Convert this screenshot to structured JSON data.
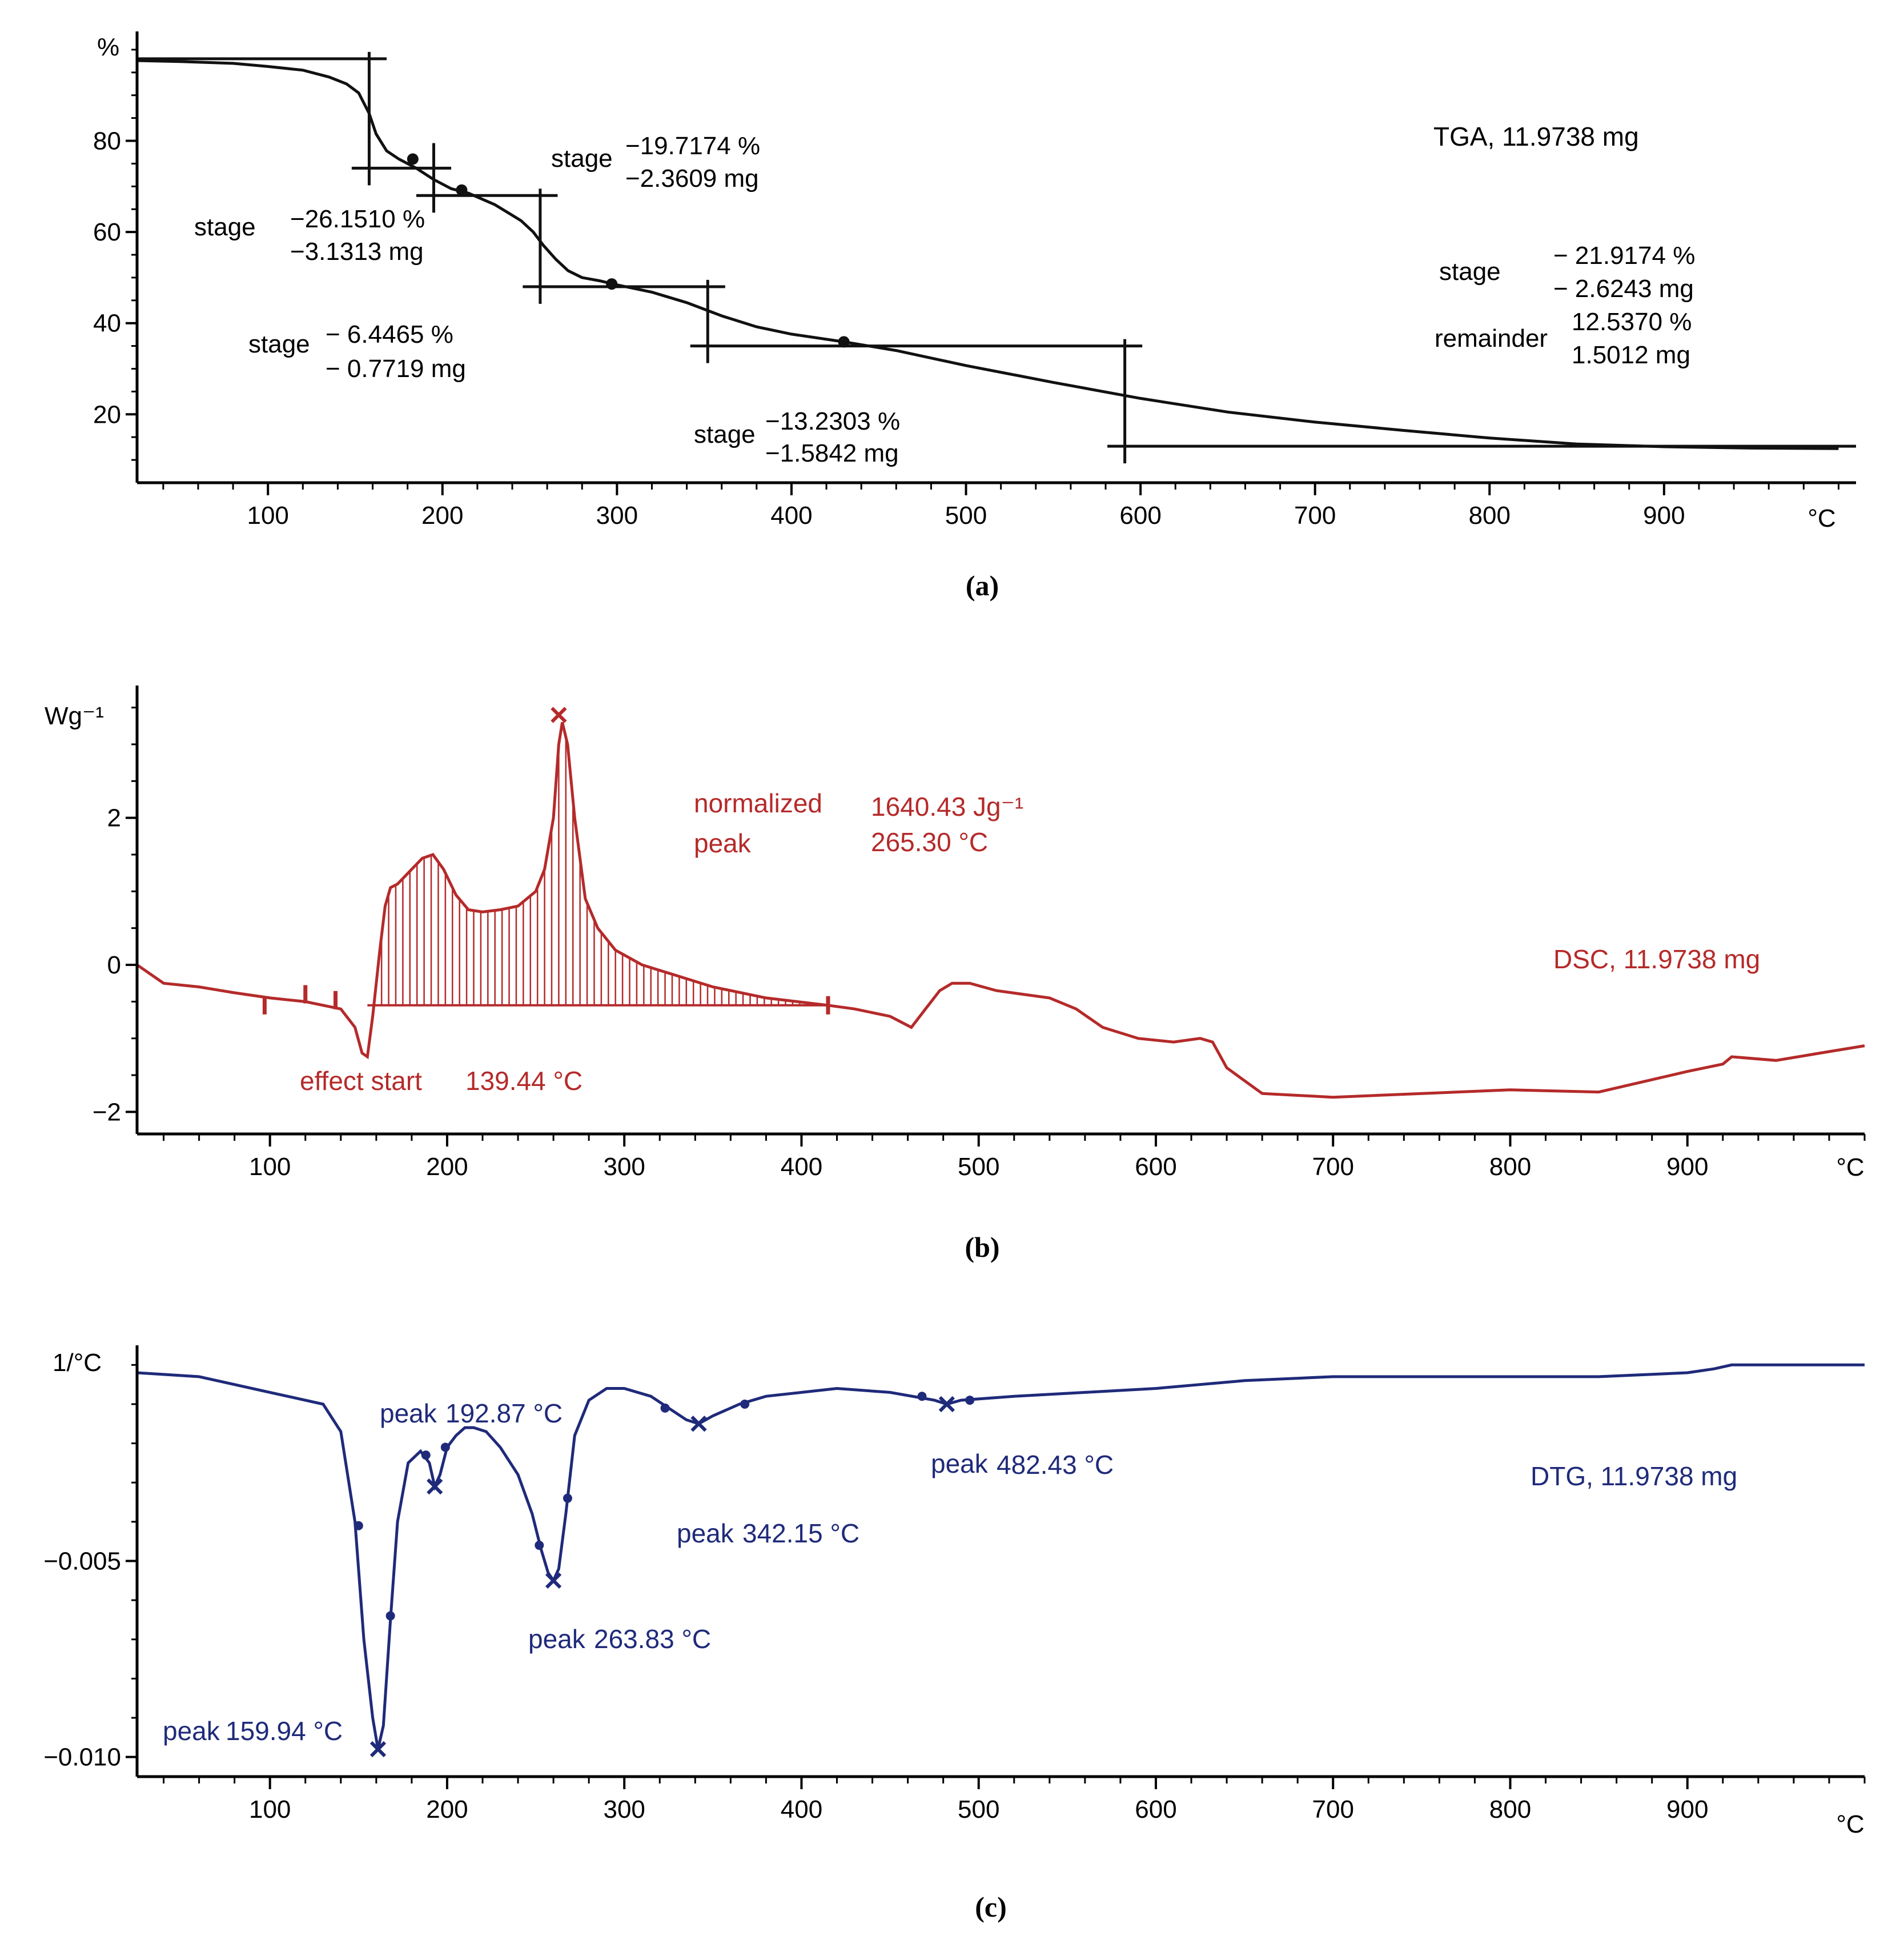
{
  "colors": {
    "tga": "#111111",
    "dsc": "#b52a2a",
    "dtg": "#1f2a7a",
    "axis": "#000000"
  },
  "captions": [
    "(a)",
    "(b)",
    "(c)"
  ],
  "chart_data": [
    {
      "id": "tga",
      "type": "line",
      "title": "TGA, 11.9738 mg",
      "series_name": "TGA, 11.9738 mg",
      "ylabel": "%",
      "xunit": "°C",
      "xlim": [
        25,
        1010
      ],
      "ylim": [
        5,
        104
      ],
      "xticks": [
        100,
        200,
        300,
        400,
        500,
        600,
        700,
        800,
        900
      ],
      "yticks": [
        20,
        40,
        60,
        80
      ],
      "x": [
        25,
        50,
        80,
        100,
        120,
        135,
        145,
        152,
        158,
        162,
        168,
        175,
        185,
        195,
        205,
        215,
        230,
        245,
        252,
        258,
        265,
        272,
        280,
        290,
        300,
        320,
        340,
        360,
        380,
        400,
        430,
        460,
        500,
        550,
        600,
        650,
        700,
        750,
        800,
        850,
        900,
        950,
        1000
      ],
      "y": [
        97.6,
        97.4,
        97.0,
        96.3,
        95.5,
        94.0,
        92.5,
        90.5,
        86.0,
        81.5,
        77.8,
        76.0,
        74.0,
        71.5,
        69.5,
        68.5,
        66.0,
        62.5,
        60.0,
        57.0,
        54.0,
        51.5,
        50.0,
        49.3,
        48.4,
        46.8,
        44.5,
        41.6,
        39.2,
        37.6,
        35.9,
        34.0,
        30.7,
        27.0,
        23.5,
        20.5,
        18.3,
        16.5,
        14.8,
        13.5,
        12.9,
        12.6,
        12.5
      ],
      "markers": [
        {
          "x": 183,
          "y": 76.0
        },
        {
          "x": 211,
          "y": 69.2
        },
        {
          "x": 297,
          "y": 48.6
        },
        {
          "x": 430,
          "y": 35.9
        }
      ],
      "stage_steps": [
        {
          "x": 158,
          "y_from": 98,
          "y_to": 74
        },
        {
          "x": 195,
          "y_from": 78,
          "y_to": 68
        },
        {
          "x": 256,
          "y_from": 68,
          "y_to": 48
        },
        {
          "x": 352,
          "y_from": 48,
          "y_to": 35
        },
        {
          "x": 591,
          "y_from": 35,
          "y_to": 13
        }
      ],
      "stage_levels": [
        {
          "y": 98,
          "x_from": 25,
          "x_to": 168
        },
        {
          "y": 74,
          "x_from": 148,
          "x_to": 205
        },
        {
          "y": 68,
          "x_from": 185,
          "x_to": 266
        },
        {
          "y": 48,
          "x_from": 246,
          "x_to": 362
        },
        {
          "y": 35,
          "x_from": 342,
          "x_to": 601
        },
        {
          "y": 13,
          "x_from": 581,
          "x_to": 1010
        }
      ],
      "annotations": [
        {
          "label": "stage",
          "line1": "−26.1510 %",
          "line2": "−3.1313 mg"
        },
        {
          "label": "stage",
          "line1": "−19.7174 %",
          "line2": "−2.3609 mg"
        },
        {
          "label": "stage",
          "line1": "− 6.4465 %",
          "line2": "− 0.7719 mg"
        },
        {
          "label": "stage",
          "line1": "−13.2303 %",
          "line2": "−1.5842 mg"
        },
        {
          "label": "stage",
          "line1": "− 21.9174 %",
          "line2": "− 2.6243 mg"
        },
        {
          "label": "remainder",
          "line1": "12.5370 %",
          "line2": "1.5012 mg"
        }
      ]
    },
    {
      "id": "dsc",
      "type": "area",
      "title": "DSC, 11.9738 mg",
      "series_name": "DSC, 11.9738 mg",
      "ylabel": "Wg⁻¹",
      "xunit": "°C",
      "xlim": [
        25,
        1000
      ],
      "ylim": [
        -2.3,
        3.8
      ],
      "xticks": [
        100,
        200,
        300,
        400,
        500,
        600,
        700,
        800,
        900
      ],
      "yticks": [
        -2,
        0,
        2
      ],
      "ytick_labels": [
        "−2",
        "0",
        "2"
      ],
      "x": [
        25,
        40,
        60,
        80,
        100,
        120,
        140,
        148,
        152,
        155,
        158,
        162,
        165,
        168,
        172,
        176,
        180,
        186,
        192,
        198,
        205,
        212,
        220,
        230,
        240,
        250,
        255,
        260,
        263,
        265,
        268,
        272,
        278,
        285,
        295,
        310,
        330,
        350,
        380,
        415,
        430,
        450,
        462,
        470,
        478,
        485,
        495,
        510,
        540,
        555,
        570,
        590,
        610,
        625,
        632,
        640,
        660,
        700,
        750,
        800,
        850,
        900,
        920,
        925,
        950,
        975,
        1000
      ],
      "y": [
        0.0,
        -0.25,
        -0.3,
        -0.38,
        -0.45,
        -0.5,
        -0.6,
        -0.85,
        -1.2,
        -1.25,
        -0.7,
        0.2,
        0.8,
        1.05,
        1.1,
        1.2,
        1.3,
        1.45,
        1.5,
        1.3,
        0.95,
        0.75,
        0.72,
        0.75,
        0.8,
        1.0,
        1.3,
        2.0,
        3.0,
        3.3,
        3.0,
        2.0,
        0.9,
        0.5,
        0.2,
        0.0,
        -0.15,
        -0.3,
        -0.45,
        -0.55,
        -0.6,
        -0.7,
        -0.85,
        -0.6,
        -0.35,
        -0.25,
        -0.25,
        -0.35,
        -0.45,
        -0.6,
        -0.85,
        -1.0,
        -1.05,
        -1.0,
        -1.05,
        -1.4,
        -1.75,
        -1.8,
        -1.75,
        -1.7,
        -1.73,
        -1.45,
        -1.35,
        -1.25,
        -1.3,
        -1.2,
        -1.1
      ],
      "integration": {
        "x_start": 155,
        "x_end": 415,
        "baseline_y_start": -0.55,
        "baseline_y_end": -0.55
      },
      "markers": [
        {
          "x": 97,
          "y": -0.55
        },
        {
          "x": 120,
          "y": -0.4
        },
        {
          "x": 137,
          "y": -0.48
        },
        {
          "x": 415,
          "y": -0.55
        }
      ],
      "peak_marker": {
        "x": 263,
        "y": 3.4
      },
      "annotations": {
        "normalized_label": "normalized",
        "peak_label": "peak",
        "normalized_value": "1640.43 Jg⁻¹",
        "peak_value": "265.30 °C",
        "effect_start_label": "effect start",
        "effect_start_value": "139.44 °C"
      }
    },
    {
      "id": "dtg",
      "type": "line",
      "title": "DTG, 11.9738 mg",
      "series_name": "DTG, 11.9738 mg",
      "ylabel": "1/°C",
      "xunit": "°C",
      "xlim": [
        25,
        1000
      ],
      "ylim": [
        -0.0105,
        0.0005
      ],
      "xticks": [
        100,
        200,
        300,
        400,
        500,
        600,
        700,
        800,
        900
      ],
      "yticks": [
        -0.005,
        -0.01
      ],
      "ytick_labels": [
        "−0.005",
        "−0.010"
      ],
      "x": [
        25,
        60,
        100,
        130,
        140,
        148,
        153,
        158,
        161,
        164,
        168,
        172,
        178,
        185,
        190,
        193,
        196,
        200,
        205,
        210,
        215,
        222,
        230,
        240,
        248,
        253,
        257,
        260,
        263,
        267,
        272,
        280,
        290,
        300,
        315,
        325,
        335,
        342,
        350,
        365,
        380,
        400,
        420,
        450,
        475,
        482,
        490,
        520,
        560,
        600,
        650,
        700,
        750,
        800,
        850,
        900,
        915,
        925,
        950,
        975,
        1000
      ],
      "y": [
        -0.0002,
        -0.0003,
        -0.0007,
        -0.001,
        -0.0017,
        -0.004,
        -0.007,
        -0.009,
        -0.0098,
        -0.0092,
        -0.0065,
        -0.004,
        -0.0025,
        -0.0022,
        -0.0025,
        -0.0031,
        -0.0028,
        -0.0021,
        -0.0018,
        -0.0016,
        -0.0016,
        -0.0017,
        -0.0021,
        -0.0028,
        -0.0038,
        -0.0047,
        -0.0053,
        -0.0055,
        -0.0052,
        -0.0038,
        -0.0018,
        -0.0009,
        -0.0006,
        -0.0006,
        -0.0008,
        -0.0011,
        -0.0014,
        -0.0015,
        -0.0013,
        -0.001,
        -0.0008,
        -0.0007,
        -0.0006,
        -0.0007,
        -0.0009,
        -0.001,
        -0.0009,
        -0.0008,
        -0.0007,
        -0.0006,
        -0.0004,
        -0.0003,
        -0.0003,
        -0.0003,
        -0.0003,
        -0.0002,
        -0.0001,
        0.0,
        0.0,
        0.0,
        0.0
      ],
      "peaks": [
        {
          "x": 161,
          "y": -0.0098,
          "label": "peak",
          "value": "159.94 °C"
        },
        {
          "x": 193,
          "y": -0.0031,
          "label": "peak",
          "value": "192.87 °C"
        },
        {
          "x": 260,
          "y": -0.0055,
          "label": "peak",
          "value": "263.83 °C"
        },
        {
          "x": 342,
          "y": -0.0015,
          "label": "peak",
          "value": "342.15 °C"
        },
        {
          "x": 482,
          "y": -0.001,
          "label": "peak",
          "value": "482.43 °C"
        }
      ],
      "markers": [
        {
          "x": 150,
          "y": -0.0041
        },
        {
          "x": 168,
          "y": -0.0064
        },
        {
          "x": 188,
          "y": -0.0023
        },
        {
          "x": 199,
          "y": -0.0021
        },
        {
          "x": 252,
          "y": -0.0046
        },
        {
          "x": 268,
          "y": -0.0034
        },
        {
          "x": 323,
          "y": -0.0011
        },
        {
          "x": 368,
          "y": -0.001
        },
        {
          "x": 468,
          "y": -0.0008
        },
        {
          "x": 495,
          "y": -0.0009
        }
      ]
    }
  ]
}
